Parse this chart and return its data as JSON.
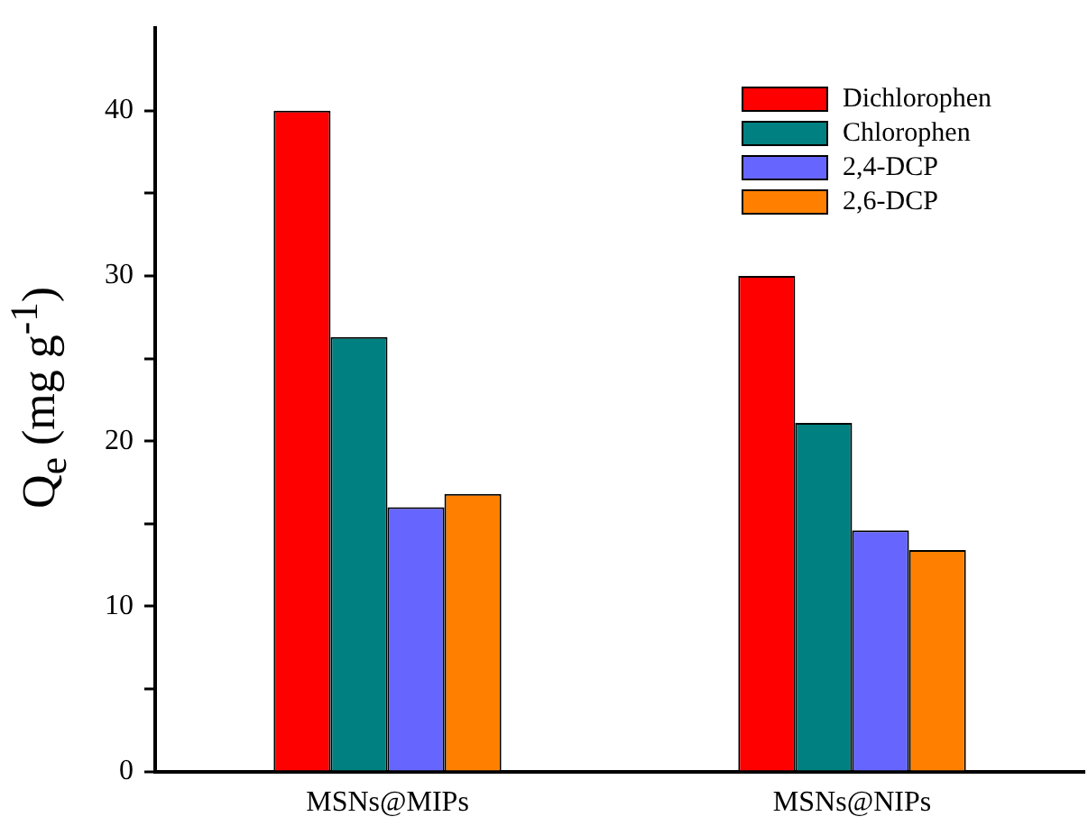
{
  "chart_data": {
    "type": "bar",
    "ylabel": "Q$_{e}$ (mg g$^{-1}$)",
    "categories": [
      "MSNs@MIPs",
      "MSNs@NIPs"
    ],
    "series": [
      {
        "name": "Dichlorophen",
        "color": "#ff0000",
        "values": [
          40.0,
          30.0
        ]
      },
      {
        "name": "Chlorophen",
        "color": "#008080",
        "values": [
          26.3,
          21.1
        ]
      },
      {
        "name": "2,4-DCP",
        "color": "#6666ff",
        "values": [
          16.0,
          14.6
        ]
      },
      {
        "name": "2,6-DCP",
        "color": "#ff8000",
        "values": [
          16.8,
          13.4
        ]
      }
    ],
    "ylim": [
      0,
      45
    ],
    "yticks": [
      0,
      {
        "value": 5,
        "label": null
      },
      10,
      {
        "value": 15,
        "label": null
      },
      20,
      {
        "value": 25,
        "label": null
      },
      30,
      {
        "value": 35,
        "label": null
      },
      40
    ],
    "grid": false,
    "legend": "top right"
  }
}
